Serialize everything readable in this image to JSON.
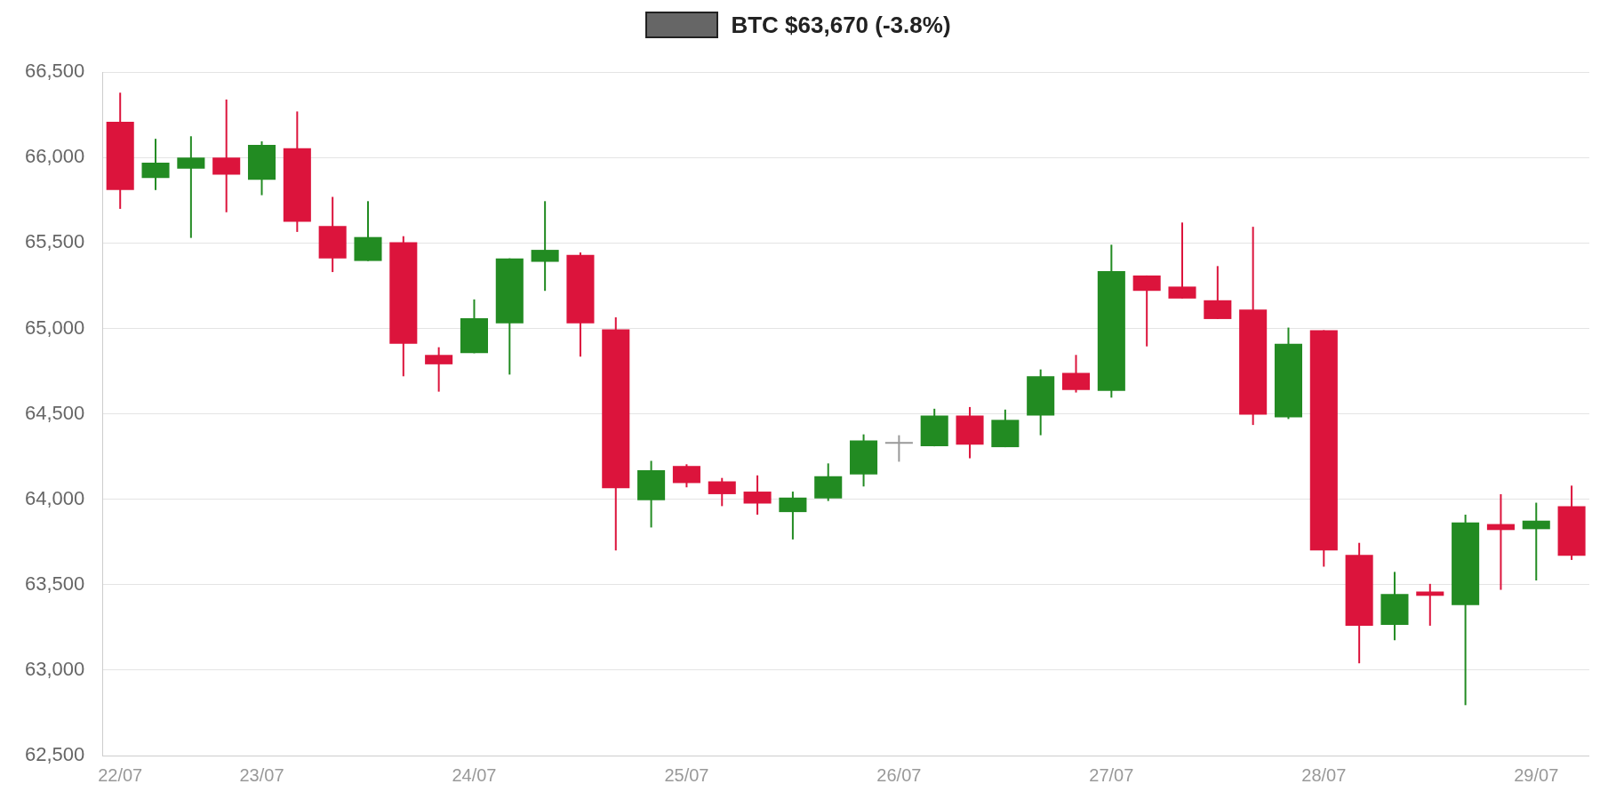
{
  "chart_data": {
    "type": "candlestick",
    "legend": "top",
    "grid": "y",
    "categories": [
      "22/07",
      null,
      null,
      null,
      "23/07",
      null,
      null,
      null,
      null,
      null,
      "24/07",
      null,
      null,
      null,
      null,
      null,
      "25/07",
      null,
      null,
      null,
      null,
      null,
      "26/07",
      null,
      null,
      null,
      null,
      null,
      "27/07",
      null,
      null,
      null,
      null,
      null,
      "28/07",
      null,
      null,
      null,
      null,
      null,
      "29/07",
      null
    ],
    "ylim": [
      62500,
      66500
    ],
    "yticks": [
      {
        "value": 62500,
        "label": "62,500"
      },
      {
        "value": 63000,
        "label": "63,000"
      },
      {
        "value": 63500,
        "label": "63,500"
      },
      {
        "value": 64000,
        "label": "64,000"
      },
      {
        "value": 64500,
        "label": "64,500"
      },
      {
        "value": 65000,
        "label": "65,000"
      },
      {
        "value": 65500,
        "label": "65,500"
      },
      {
        "value": 66000,
        "label": "66,000"
      },
      {
        "value": 66500,
        "label": "66,500"
      }
    ],
    "series": [
      {
        "name": "BTC $63,670 (-3.8%)",
        "color": "#666666",
        "ohlc": [
          [
            66210,
            66380,
            65700,
            65810
          ],
          [
            65880,
            66110,
            65810,
            65970
          ],
          [
            65935,
            66125,
            65530,
            66000
          ],
          [
            66000,
            66340,
            65680,
            65900
          ],
          [
            65870,
            66095,
            65780,
            66075
          ],
          [
            66055,
            66270,
            65565,
            65625
          ],
          [
            65600,
            65770,
            65330,
            65410
          ],
          [
            65395,
            65745,
            65395,
            65535
          ],
          [
            65505,
            65540,
            64720,
            64910
          ],
          [
            64845,
            64890,
            64630,
            64790
          ],
          [
            64855,
            65170,
            64855,
            65060
          ],
          [
            65030,
            65410,
            64730,
            65410
          ],
          [
            65390,
            65745,
            65220,
            65460
          ],
          [
            65430,
            65445,
            64835,
            65030
          ],
          [
            64995,
            65065,
            63700,
            64065
          ],
          [
            63995,
            64225,
            63835,
            64170
          ],
          [
            64195,
            64205,
            64070,
            64095
          ],
          [
            64105,
            64125,
            63960,
            64030
          ],
          [
            64045,
            64140,
            63910,
            63975
          ],
          [
            63925,
            64045,
            63765,
            64010
          ],
          [
            64005,
            64210,
            63990,
            64135
          ],
          [
            64145,
            64380,
            64075,
            64345
          ],
          [
            64325,
            64375,
            64220,
            64325
          ],
          [
            64310,
            64530,
            64310,
            64490
          ],
          [
            64490,
            64540,
            64240,
            64320
          ],
          [
            64305,
            64525,
            64305,
            64465
          ],
          [
            64490,
            64760,
            64375,
            64720
          ],
          [
            64740,
            64845,
            64625,
            64640
          ],
          [
            64635,
            65490,
            64595,
            65335
          ],
          [
            65310,
            65310,
            64895,
            65220
          ],
          [
            65245,
            65620,
            65175,
            65175
          ],
          [
            65165,
            65365,
            65055,
            65055
          ],
          [
            65110,
            65595,
            64435,
            64495
          ],
          [
            64480,
            65005,
            64470,
            64910
          ],
          [
            64990,
            64990,
            63605,
            63700
          ],
          [
            63675,
            63745,
            63040,
            63260
          ],
          [
            63265,
            63575,
            63175,
            63445
          ],
          [
            63460,
            63505,
            63260,
            63435
          ],
          [
            63380,
            63910,
            62795,
            63865
          ],
          [
            63855,
            64030,
            63470,
            63820
          ],
          [
            63825,
            63980,
            63525,
            63875
          ],
          [
            63960,
            64080,
            63645,
            63670
          ]
        ],
        "colors": [
          "#dc143c",
          "#228b22",
          "#228b22",
          "#dc143c",
          "#228b22",
          "#dc143c",
          "#dc143c",
          "#228b22",
          "#dc143c",
          "#dc143c",
          "#228b22",
          "#228b22",
          "#228b22",
          "#dc143c",
          "#dc143c",
          "#228b22",
          "#dc143c",
          "#dc143c",
          "#dc143c",
          "#228b22",
          "#228b22",
          "#228b22",
          "#999999",
          "#228b22",
          "#dc143c",
          "#228b22",
          "#228b22",
          "#dc143c",
          "#228b22",
          "#dc143c",
          "#dc143c",
          "#dc143c",
          "#dc143c",
          "#228b22",
          "#dc143c",
          "#dc143c",
          "#228b22",
          "#dc143c",
          "#228b22",
          "#dc143c",
          "#228b22",
          "#dc143c"
        ]
      }
    ]
  }
}
